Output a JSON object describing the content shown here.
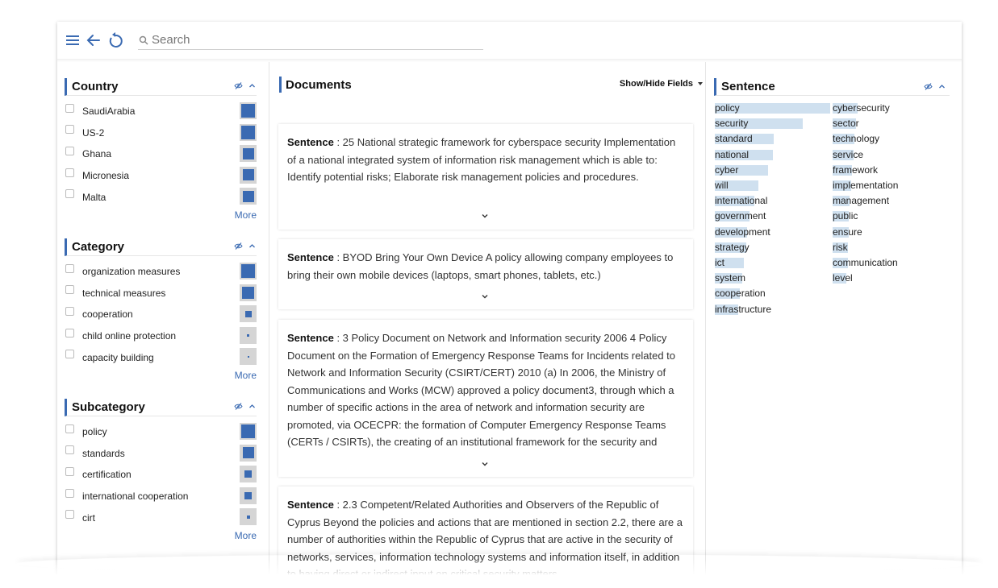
{
  "search": {
    "placeholder": "Search"
  },
  "facets": [
    {
      "title": "Country",
      "items": [
        {
          "label": "SaudiArabia",
          "level": 1.0
        },
        {
          "label": "US-2",
          "level": 1.0
        },
        {
          "label": "Ghana",
          "level": 0.8
        },
        {
          "label": "Micronesia",
          "level": 0.8
        },
        {
          "label": "Malta",
          "level": 0.8
        }
      ],
      "more": "More"
    },
    {
      "title": "Category",
      "items": [
        {
          "label": "organization measures",
          "level": 1.0
        },
        {
          "label": "technical measures",
          "level": 0.9
        },
        {
          "label": "cooperation",
          "level": 0.45
        },
        {
          "label": "child online protection",
          "level": 0.15
        },
        {
          "label": "capacity building",
          "level": 0.08
        }
      ],
      "more": "More"
    },
    {
      "title": "Subcategory",
      "items": [
        {
          "label": "policy",
          "level": 1.0
        },
        {
          "label": "standards",
          "level": 0.85
        },
        {
          "label": "certification",
          "level": 0.5
        },
        {
          "label": "international cooperation",
          "level": 0.5
        },
        {
          "label": "cirt",
          "level": 0.25
        }
      ],
      "more": "More"
    }
  ],
  "documents": {
    "title": "Documents",
    "show_hide": "Show/Hide Fields",
    "field_label": "Sentence",
    "cards": [
      {
        "text": ": 25 National strategic framework for cyberspace security Implementation of a national integrated system of information risk management which is able to: Identify potential risks; Elaborate risk management policies and procedures."
      },
      {
        "text": ": BYOD Bring Your Own Device A policy allowing company employees to bring their own mobile devices (laptops, smart phones, tablets, etc.)"
      },
      {
        "text": ": 3 Policy Document on Network and Information security 2006 4 Policy Document on the Formation of Emergency Response Teams for Incidents related to Network and Information Security (CSIRT/CERT) 2010 (a) In 2006, the Ministry of Communications and Works (MCW) approved a policy document3, through which a number of specific actions in the area of network and information security are promoted, via OCECPR: the formation of Computer Emergency Response Teams (CERTs / CSIRTs), the creating of an institutional framework for the security and"
      },
      {
        "text": ": 2.3 Competent/Related Authorities and Observers of the Republic of Cyprus Beyond the policies and actions that are mentioned in section 2.2, there are a number of authorities within the Republic of Cyprus that are active in the security of networks, services, information technology systems and information itself, in addition to having direct or indirect input on critical security matters."
      }
    ]
  },
  "sentence_facet": {
    "title": "Sentence",
    "col1": [
      {
        "word": "policy",
        "level": 1.0
      },
      {
        "word": "security",
        "level": 0.76
      },
      {
        "word": "standard",
        "level": 0.51
      },
      {
        "word": "national",
        "level": 0.5
      },
      {
        "word": "cyber",
        "level": 0.46
      },
      {
        "word": "will",
        "level": 0.38
      },
      {
        "word": "international",
        "level": 0.34
      },
      {
        "word": "government",
        "level": 0.3
      },
      {
        "word": "development",
        "level": 0.28
      },
      {
        "word": "strategy",
        "level": 0.27
      },
      {
        "word": "ict",
        "level": 0.25
      },
      {
        "word": "system",
        "level": 0.24
      },
      {
        "word": "cooperation",
        "level": 0.22
      },
      {
        "word": "infrastructure",
        "level": 0.2
      }
    ],
    "col2": [
      {
        "word": "cybersecurity",
        "level": 0.22
      },
      {
        "word": "sector",
        "level": 0.2
      },
      {
        "word": "technology",
        "level": 0.19
      },
      {
        "word": "service",
        "level": 0.18
      },
      {
        "word": "framework",
        "level": 0.17
      },
      {
        "word": "implementation",
        "level": 0.16
      },
      {
        "word": "management",
        "level": 0.15
      },
      {
        "word": "public",
        "level": 0.14
      },
      {
        "word": "ensure",
        "level": 0.14
      },
      {
        "word": "risk",
        "level": 0.13
      },
      {
        "word": "communication",
        "level": 0.13
      },
      {
        "word": "level",
        "level": 0.12
      }
    ]
  },
  "colors": {
    "accent": "#3a6ab2",
    "bar_bg": "#d5d5d5",
    "word_bar": "#cfe0ef"
  }
}
